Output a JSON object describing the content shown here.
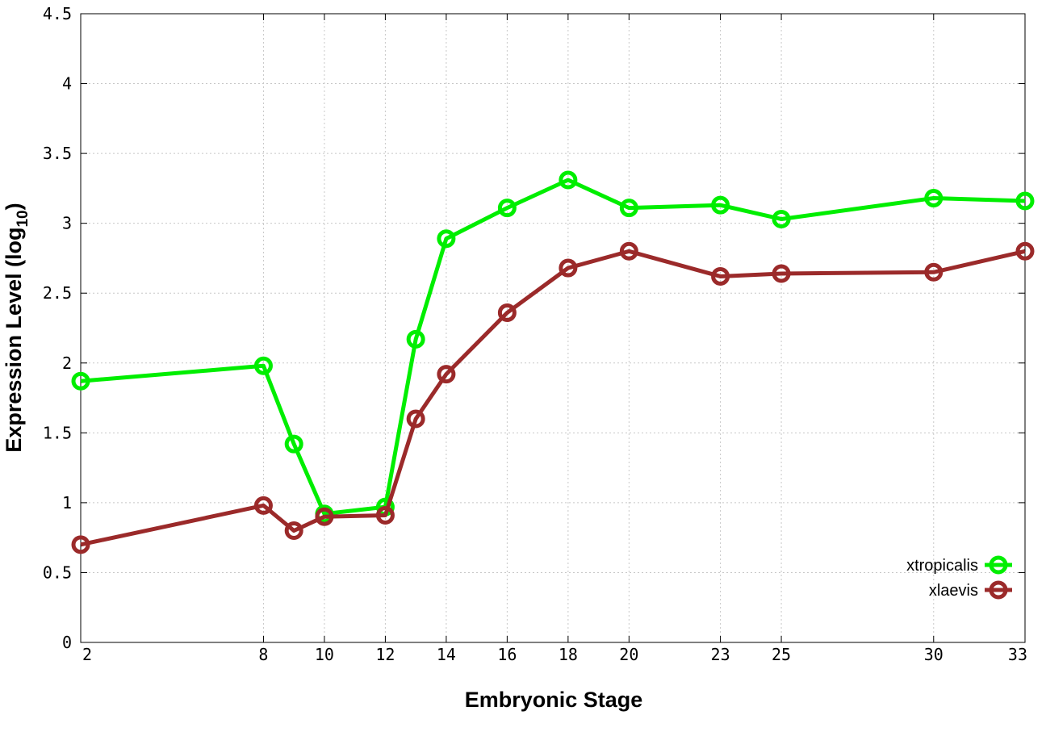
{
  "chart_data": {
    "type": "line",
    "xlabel": "Embryonic Stage",
    "ylabel_main": "Expression Level (log",
    "ylabel_sub": "10",
    "ylabel_close": ")",
    "x_ticks": [
      2,
      8,
      10,
      12,
      14,
      16,
      18,
      20,
      23,
      25,
      30,
      33
    ],
    "x_tick_labels": [
      "2",
      "8",
      "10",
      "12",
      "14",
      "16",
      "18",
      "20",
      "23",
      "25",
      "30",
      "33"
    ],
    "y_ticks": [
      0,
      0.5,
      1,
      1.5,
      2,
      2.5,
      3,
      3.5,
      4,
      4.5
    ],
    "y_tick_labels": [
      "0",
      "0.5",
      "1",
      "1.5",
      "2",
      "2.5",
      "3",
      "3.5",
      "4",
      "4.5"
    ],
    "xlim": [
      2,
      33
    ],
    "ylim": [
      0,
      4.5
    ],
    "grid": true,
    "legend_position": "bottom-right",
    "x": [
      2,
      8,
      9,
      10,
      12,
      13,
      14,
      16,
      18,
      20,
      23,
      25,
      30,
      33
    ],
    "series": [
      {
        "name": "xtropicalis",
        "color": "#00ee00",
        "values": [
          1.87,
          1.98,
          1.42,
          0.92,
          0.97,
          2.17,
          2.89,
          3.11,
          3.31,
          3.11,
          3.13,
          3.03,
          3.18,
          3.16
        ]
      },
      {
        "name": "xlaevis",
        "color": "#9b2a2a",
        "values": [
          0.7,
          0.98,
          0.8,
          0.9,
          0.91,
          1.6,
          1.92,
          2.36,
          2.68,
          2.8,
          2.62,
          2.64,
          2.65,
          2.8
        ]
      }
    ]
  }
}
